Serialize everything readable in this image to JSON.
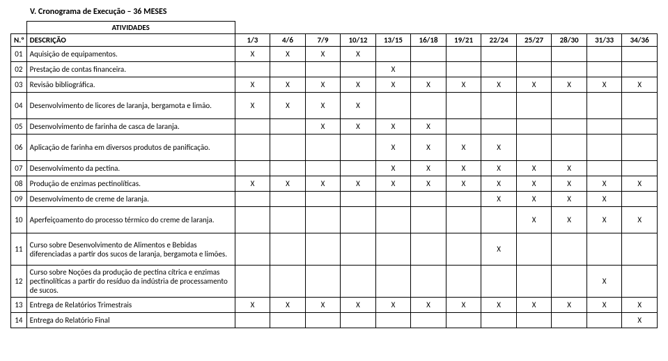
{
  "title": "V. Cronograma de Execução – 36 MESES",
  "headers": {
    "atividades": "ATIVIDADES",
    "num": "N.º",
    "desc": "DESCRIÇÃO",
    "months": [
      "1/3",
      "4/6",
      "7/9",
      "10/12",
      "13/15",
      "16/18",
      "19/21",
      "22/24",
      "25/27",
      "28/30",
      "31/33",
      "34/36"
    ]
  },
  "rows": [
    {
      "num": "01",
      "desc": "Aquisição de equipamentos.",
      "x": [
        1,
        1,
        1,
        1,
        0,
        0,
        0,
        0,
        0,
        0,
        0,
        0
      ]
    },
    {
      "num": "02",
      "desc": "Prestação de contas financeira.",
      "x": [
        0,
        0,
        0,
        0,
        1,
        0,
        0,
        0,
        0,
        0,
        0,
        0
      ]
    },
    {
      "num": "03",
      "desc": "Revisão bibliográfica.",
      "x": [
        1,
        1,
        1,
        1,
        1,
        1,
        1,
        1,
        1,
        1,
        1,
        1
      ]
    },
    {
      "num": "04",
      "desc": "Desenvolvimento de licores de laranja, bergamota e limão.",
      "x": [
        1,
        1,
        1,
        1,
        0,
        0,
        0,
        0,
        0,
        0,
        0,
        0
      ],
      "tall": true
    },
    {
      "num": "05",
      "desc": "Desenvolvimento de farinha de casca de laranja.",
      "x": [
        0,
        0,
        1,
        1,
        1,
        1,
        0,
        0,
        0,
        0,
        0,
        0
      ]
    },
    {
      "num": "06",
      "desc": "Aplicação de farinha em diversos produtos de panificação.",
      "x": [
        0,
        0,
        0,
        0,
        1,
        1,
        1,
        1,
        0,
        0,
        0,
        0
      ],
      "tall": true
    },
    {
      "num": "07",
      "desc": "Desenvolvimento da pectina.",
      "x": [
        0,
        0,
        0,
        0,
        1,
        1,
        1,
        1,
        1,
        1,
        0,
        0
      ]
    },
    {
      "num": "08",
      "desc": "Produção de enzimas pectinolíticas.",
      "x": [
        1,
        1,
        1,
        1,
        1,
        1,
        1,
        1,
        1,
        1,
        1,
        1
      ]
    },
    {
      "num": "09",
      "desc": "Desenvolvimento de creme de laranja.",
      "x": [
        0,
        0,
        0,
        0,
        0,
        0,
        0,
        1,
        1,
        1,
        1,
        0
      ]
    },
    {
      "num": "10",
      "desc": "Aperfeiçoamento do processo térmico do creme de laranja.",
      "x": [
        0,
        0,
        0,
        0,
        0,
        0,
        0,
        0,
        1,
        1,
        1,
        1
      ],
      "tall": true
    },
    {
      "num": "11",
      "desc": "Curso sobre Desenvolvimento de Alimentos e Bebidas diferenciadas a partir dos sucos de laranja, bergamota e limões.",
      "x": [
        0,
        0,
        0,
        0,
        0,
        0,
        0,
        1,
        0,
        0,
        0,
        0
      ],
      "taller": true
    },
    {
      "num": "12",
      "desc": "Curso sobre Noções da produção de pectina cítrica e enzimas pectinolíticas a partir do resíduo da indústria de processamento de sucos.",
      "x": [
        0,
        0,
        0,
        0,
        0,
        0,
        0,
        0,
        0,
        0,
        1,
        0
      ],
      "taller": true
    },
    {
      "num": "13",
      "desc": "Entrega de Relatórios Trimestrais",
      "x": [
        1,
        1,
        1,
        1,
        1,
        1,
        1,
        1,
        1,
        1,
        1,
        1
      ]
    },
    {
      "num": "14",
      "desc": "Entrega do Relatório Final",
      "x": [
        0,
        0,
        0,
        0,
        0,
        0,
        0,
        0,
        0,
        0,
        0,
        1
      ]
    }
  ],
  "mark": "X"
}
